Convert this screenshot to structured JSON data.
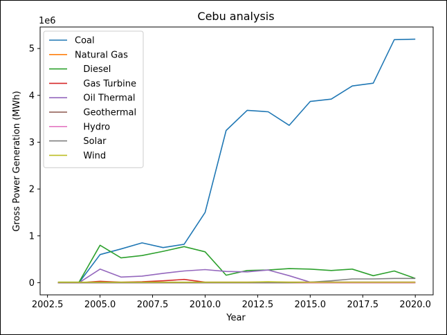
{
  "chart_data": {
    "type": "line",
    "title": "Cebu analysis",
    "xlabel": "Year",
    "ylabel": "Gross Power Generation (MWh)",
    "y_offset_label": "1e6",
    "xlim": [
      2002.15,
      2020.85
    ],
    "ylim": [
      -0.26,
      5.46
    ],
    "x_ticks": [
      2002.5,
      2005.0,
      2007.5,
      2010.0,
      2012.5,
      2015.0,
      2017.5,
      2020.0
    ],
    "x_tick_labels": [
      "2002.5",
      "2005.0",
      "2007.5",
      "2010.0",
      "2012.5",
      "2015.0",
      "2017.5",
      "2020.0"
    ],
    "y_ticks": [
      0,
      1,
      2,
      3,
      4,
      5
    ],
    "y_tick_labels": [
      "0",
      "1",
      "2",
      "3",
      "4",
      "5"
    ],
    "legend_position": "top-left",
    "x": [
      2003,
      2004,
      2005,
      2006,
      2007,
      2008,
      2009,
      2010,
      2011,
      2012,
      2013,
      2014,
      2015,
      2016,
      2017,
      2018,
      2019,
      2020
    ],
    "series": [
      {
        "name": "Coal",
        "color": "#1f77b4",
        "values": [
          0,
          0,
          0.6,
          0.72,
          0.85,
          0.75,
          0.82,
          1.5,
          3.25,
          3.68,
          3.65,
          3.36,
          3.87,
          3.92,
          4.2,
          4.26,
          5.19,
          5.2
        ]
      },
      {
        "name": "Natural Gas",
        "color": "#ff7f0e",
        "values": [
          0,
          0,
          0,
          0,
          0,
          0,
          0,
          0,
          0,
          0,
          0,
          0,
          0,
          0,
          0,
          0,
          0,
          0
        ]
      },
      {
        "name": "   Diesel",
        "color": "#2ca02c",
        "values": [
          0.01,
          0.01,
          0.8,
          0.53,
          0.58,
          0.67,
          0.77,
          0.66,
          0.16,
          0.26,
          0.27,
          0.3,
          0.29,
          0.26,
          0.29,
          0.15,
          0.25,
          0.09
        ]
      },
      {
        "name": "   Gas Turbine",
        "color": "#d62728",
        "values": [
          0,
          0,
          0.03,
          0.01,
          0.02,
          0.04,
          0.07,
          0.01,
          0.01,
          0.01,
          0.01,
          0.01,
          0.01,
          0.01,
          0.01,
          0.01,
          0.01,
          0.01
        ]
      },
      {
        "name": "   Oil Thermal",
        "color": "#9467bd",
        "values": [
          0,
          0,
          0.29,
          0.12,
          0.14,
          0.2,
          0.25,
          0.28,
          0.24,
          0.23,
          0.27,
          0.15,
          0.01,
          0.01,
          0.01,
          0.01,
          0.01,
          0.01
        ]
      },
      {
        "name": "   Geothermal",
        "color": "#8c564b",
        "values": [
          0,
          0,
          0,
          0,
          0,
          0,
          0,
          0,
          0,
          0,
          0,
          0,
          0,
          0,
          0,
          0,
          0,
          0
        ]
      },
      {
        "name": "   Hydro",
        "color": "#e377c2",
        "values": [
          0,
          0,
          0,
          0,
          0,
          0,
          0,
          0,
          0,
          0,
          0,
          0,
          0,
          0,
          0,
          0,
          0,
          0
        ]
      },
      {
        "name": "   Solar",
        "color": "#7f7f7f",
        "values": [
          0,
          0,
          0,
          0,
          0,
          0,
          0,
          0,
          0,
          0,
          0,
          0,
          0.01,
          0.04,
          0.08,
          0.08,
          0.09,
          0.09
        ]
      },
      {
        "name": "   Wind",
        "color": "#bcbd22",
        "values": [
          0.01,
          0.01,
          0.01,
          0.01,
          0.01,
          0.01,
          0.01,
          0.01,
          0.01,
          0.01,
          0.02,
          0.01,
          0.01,
          0.01,
          0.01,
          0.01,
          0.01,
          0.01
        ]
      }
    ]
  }
}
